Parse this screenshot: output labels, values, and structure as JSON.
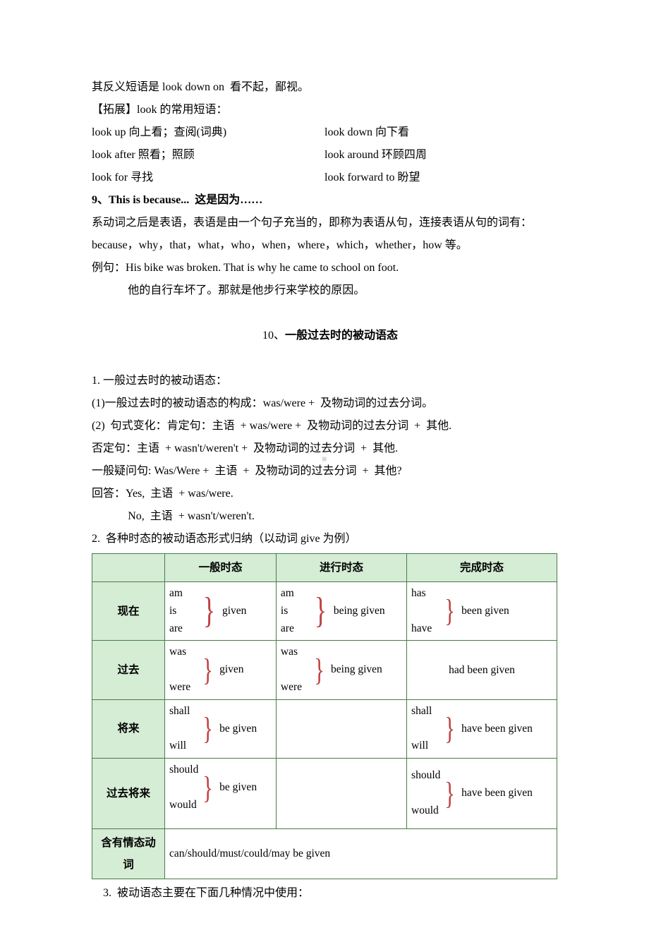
{
  "intro_lines": [
    "其反义短语是 look down on  看不起，鄙视。",
    "【拓展】look 的常用短语："
  ],
  "look_phrases": [
    {
      "left": "look up  向上看；查阅(词典)",
      "right": "look down  向下看"
    },
    {
      "left": "look after  照看；照顾",
      "right": "look around  环顾四周"
    },
    {
      "left": "look for  寻找",
      "right": "look forward to  盼望"
    }
  ],
  "section9": {
    "heading": "9、This is because...  这是因为……",
    "lines": [
      "系动词之后是表语，表语是由一个句子充当的，即称为表语从句，连接表语从句的词有：because，why，that，what，who，when，where，which，whether，how 等。",
      "例句：His bike was broken. That is why he came to school on foot."
    ],
    "indent_line": "他的自行车坏了。那就是他步行来学校的原因。"
  },
  "section10": {
    "heading_prefix": "10、",
    "heading_bold": "一般过去时的被动语态",
    "lines": [
      "1. 一般过去时的被动语态：",
      "(1)一般过去时的被动语态的构成：was/were +  及物动词的过去分词。",
      "(2)  句式变化：肯定句：主语  + was/were +  及物动词的过去分词  +  其他.",
      "否定句：主语  + wasn't/weren't +  及物动词的过去分词  +  其他.",
      "一般疑问句: Was/Were +  主语  +  及物动词的过去分词  +  其他?",
      "回答：Yes,  主语  + was/were."
    ],
    "indent_line": "No,  主语  + wasn't/weren't.",
    "line_after": "2.  各种时态的被动语态形式归纳（以动词 give 为例）"
  },
  "table": {
    "headers": [
      "",
      "一般时态",
      "进行时态",
      "完成时态"
    ],
    "rows": [
      {
        "head": "现在",
        "cells": [
          {
            "aux": [
              "am",
              "is",
              "are"
            ],
            "after": "given",
            "brace": true
          },
          {
            "aux": [
              "am",
              "is",
              "are"
            ],
            "after": "being given",
            "brace": true
          },
          {
            "aux": [
              "has",
              "",
              "have"
            ],
            "after": "been given",
            "brace": true
          }
        ]
      },
      {
        "head": "过去",
        "cells": [
          {
            "aux": [
              "was",
              "",
              "were"
            ],
            "after": "given",
            "brace": true
          },
          {
            "aux": [
              "was",
              "",
              "were"
            ],
            "after": "being given",
            "brace": true
          },
          {
            "plain": "had been given",
            "center": true
          }
        ]
      },
      {
        "head": "将来",
        "cells": [
          {
            "aux": [
              "shall",
              "",
              "will"
            ],
            "after": "be given",
            "brace": true
          },
          {
            "plain": ""
          },
          {
            "aux": [
              "shall",
              "",
              "will"
            ],
            "after": "have been given",
            "brace": true
          }
        ]
      },
      {
        "head": "过去将来",
        "cells": [
          {
            "aux": [
              "should",
              "",
              "would"
            ],
            "after": "be given",
            "brace": true,
            "extra_pad": true
          },
          {
            "plain": ""
          },
          {
            "aux": [
              "should",
              "",
              "would"
            ],
            "after": "have been given",
            "brace": true
          }
        ]
      },
      {
        "head": "含有情态动词",
        "colspan_cell": "can/should/must/could/may be given"
      }
    ]
  },
  "footer_line": "3.  被动语态主要在下面几种情况中使用：",
  "colors": {
    "table_border": "#4a7a4a",
    "table_header_bg": "#d5ecd5",
    "brace_color": "#c04040",
    "background": "#ffffff"
  }
}
